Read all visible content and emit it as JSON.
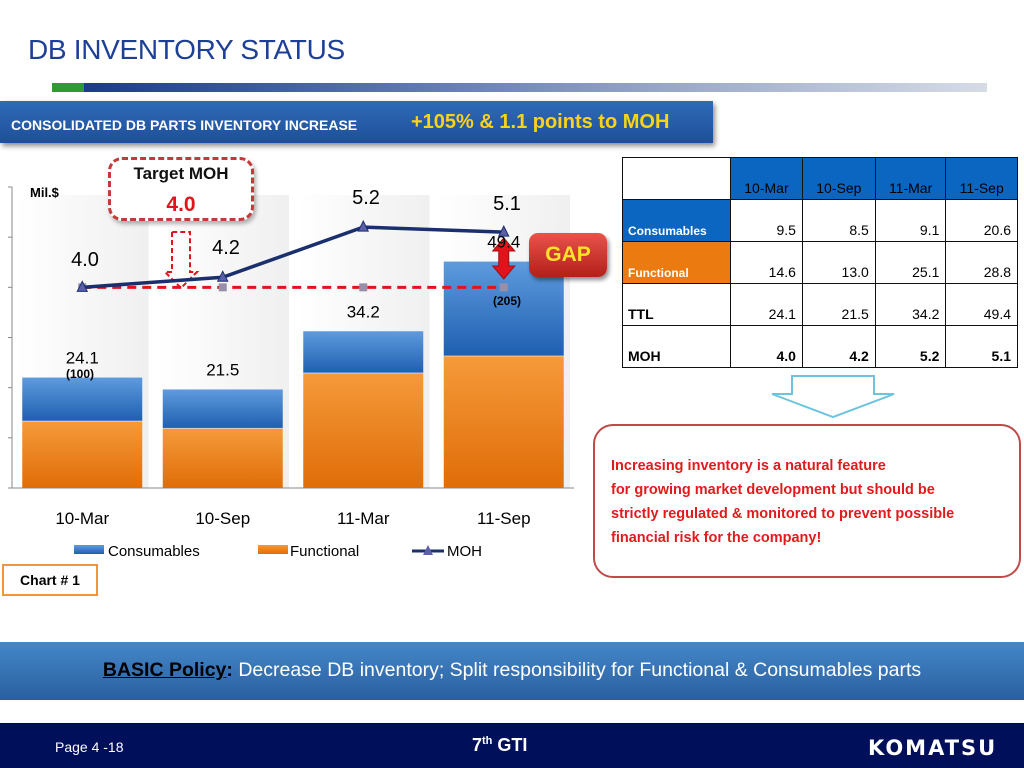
{
  "slide": {
    "title": "DB INVENTORY STATUS",
    "subtitle_lead": "CONSOLIDATED DB PARTS INVENTORY INCREASE",
    "subtitle_highlight": "+105% & 1.1 points to MOH",
    "chart_number": "Chart # 1",
    "target_box": {
      "label": "Target MOH",
      "value": "4.0"
    },
    "gap_label": "GAP",
    "colors": {
      "consumables": "#1f6fc4",
      "functional": "#eb7a10",
      "moh": "#1a2f6e",
      "target": "#e3131b",
      "accent": "#1d3f95"
    }
  },
  "chart_data": {
    "type": "bar",
    "unit_label": "Mil.$",
    "categories": [
      "10-Mar",
      "10-Sep",
      "11-Mar",
      "11-Sep"
    ],
    "stacked": true,
    "series": [
      {
        "name": "Consumables",
        "values": [
          9.5,
          8.5,
          9.1,
          20.6
        ]
      },
      {
        "name": "Functional",
        "values": [
          14.6,
          13.0,
          25.1,
          28.8
        ]
      }
    ],
    "totals": [
      "24.1",
      "21.5",
      "34.2",
      "49.4"
    ],
    "line_series": {
      "name": "MOH",
      "values": [
        4.0,
        4.2,
        5.2,
        5.1
      ],
      "labels": [
        "4.0",
        "4.2",
        "5.2",
        "5.1"
      ]
    },
    "target_line": {
      "value": 4.0
    },
    "annotations": [
      "(100)",
      "(205)"
    ],
    "legend": [
      "Consumables",
      "Functional",
      "MOH"
    ],
    "legend_position": "bottom",
    "bar_ylim": [
      0,
      60
    ],
    "moh_ylim": [
      0,
      6
    ],
    "grid": false
  },
  "table": {
    "headers": [
      "",
      "10-Mar",
      "10-Sep",
      "11-Mar",
      "11-Sep"
    ],
    "rows": [
      {
        "label": "Consumables",
        "values": [
          "9.5",
          "8.5",
          "9.1",
          "20.6"
        ]
      },
      {
        "label": "Functional",
        "values": [
          "14.6",
          "13.0",
          "25.1",
          "28.8"
        ]
      },
      {
        "label": "TTL",
        "values": [
          "24.1",
          "21.5",
          "34.2",
          "49.4"
        ]
      },
      {
        "label": "MOH",
        "values": [
          "4.0",
          "4.2",
          "5.2",
          "5.1"
        ]
      }
    ]
  },
  "note": {
    "lines": [
      "Increasing inventory is a natural feature",
      " for growing market development but should be",
      "strictly regulated & monitored to prevent possible",
      "financial risk for the company!"
    ]
  },
  "policy": {
    "key": "BASIC Policy",
    "colon": ":",
    "text": " Decrease DB inventory; Split responsibility for Functional & Consumables parts"
  },
  "footer": {
    "page": "Page 4 -18",
    "event_num": "7",
    "event_sup": "th",
    "event_name": " GTI",
    "logo": "KOMATSU"
  }
}
